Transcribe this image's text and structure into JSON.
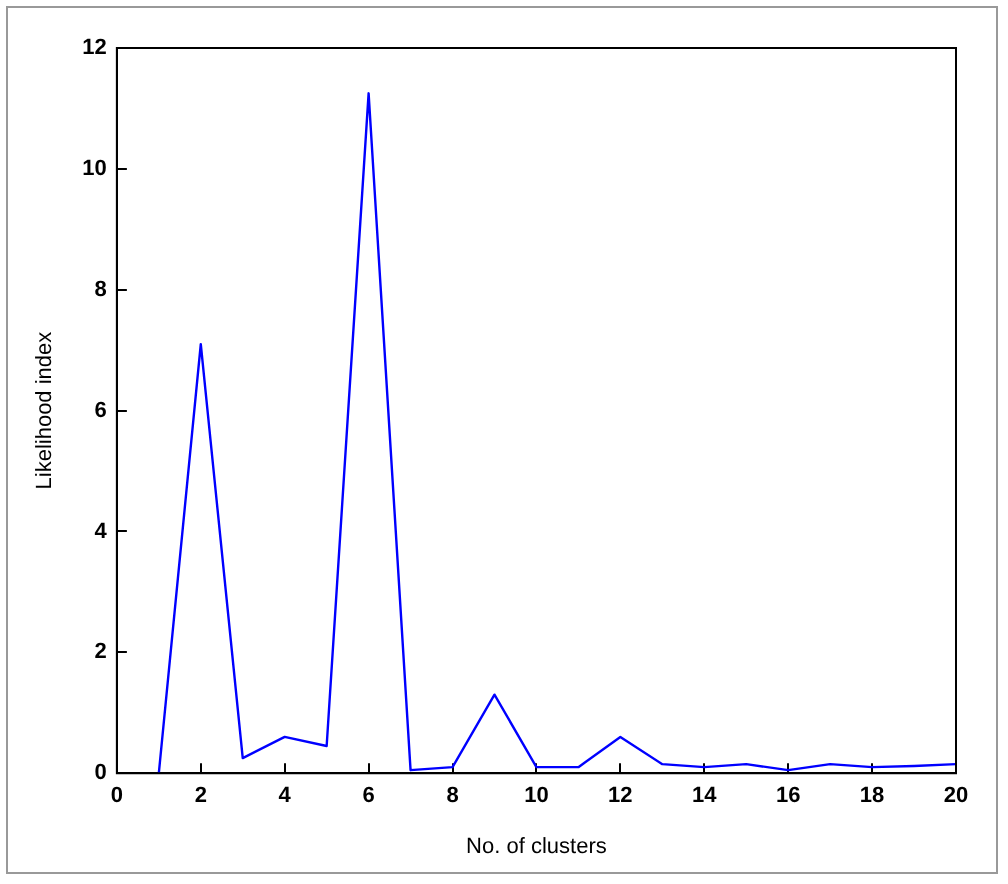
{
  "chart_data": {
    "type": "line",
    "xlabel": "No. of clusters",
    "ylabel": "Likelihood index",
    "x": [
      1,
      2,
      3,
      4,
      5,
      6,
      7,
      8,
      9,
      10,
      11,
      12,
      13,
      14,
      15,
      16,
      17,
      18,
      19,
      20
    ],
    "series": [
      {
        "color": "#0000ff",
        "values": [
          0,
          7.1,
          0.25,
          0.6,
          0.45,
          11.25,
          0.05,
          0.1,
          1.3,
          0.1,
          0.1,
          0.6,
          0.15,
          0.1,
          0.15,
          0.05,
          0.15,
          0.1,
          0.12,
          0.15
        ]
      }
    ],
    "xlim": [
      0,
      20
    ],
    "xticks": [
      0,
      2,
      4,
      6,
      8,
      10,
      12,
      14,
      16,
      18,
      20
    ],
    "ylim": [
      0,
      12
    ],
    "yticks": [
      0,
      2,
      4,
      6,
      8,
      10,
      12
    ],
    "grid": false,
    "legend": false,
    "marker": "none",
    "line_style": "solid"
  }
}
